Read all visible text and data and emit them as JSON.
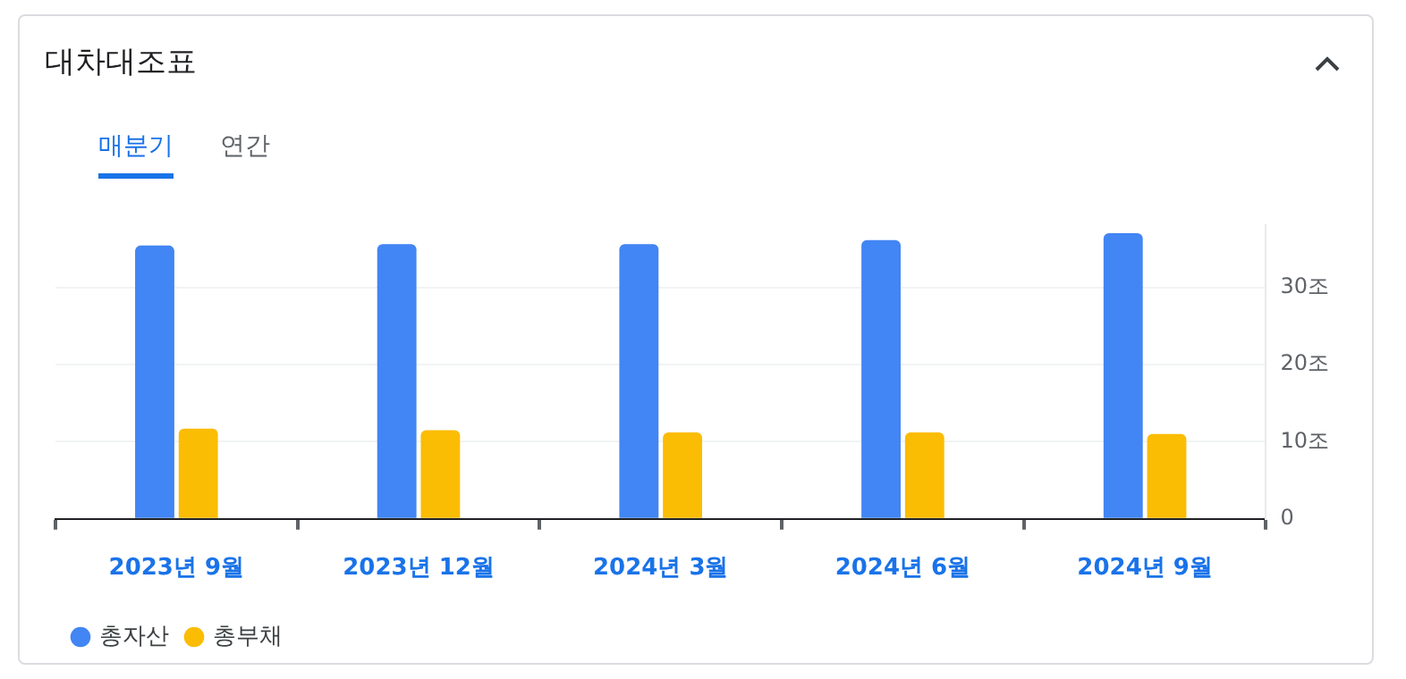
{
  "chart_data": {
    "type": "bar",
    "title": "대차대조표",
    "annotations": [
      "매분기",
      "연간"
    ],
    "categories": [
      "2023년 9월",
      "2023년 12월",
      "2024년 3월",
      "2024년 6월",
      "2024년 9월"
    ],
    "series": [
      {
        "name": "총자산",
        "color": "#4285f4",
        "values": [
          35.4,
          35.6,
          35.6,
          36.1,
          37.0
        ]
      },
      {
        "name": "총부채",
        "color": "#fbbc04",
        "values": [
          11.7,
          11.5,
          11.2,
          11.2,
          11.0
        ]
      }
    ],
    "ylim": [
      0,
      38
    ],
    "yticks": [
      0,
      {
        "value": 10,
        "label": "10조"
      },
      {
        "value": 20,
        "label": "20조"
      },
      {
        "value": 30,
        "label": "30조"
      }
    ],
    "grid": "y",
    "legend": "bottom"
  }
}
